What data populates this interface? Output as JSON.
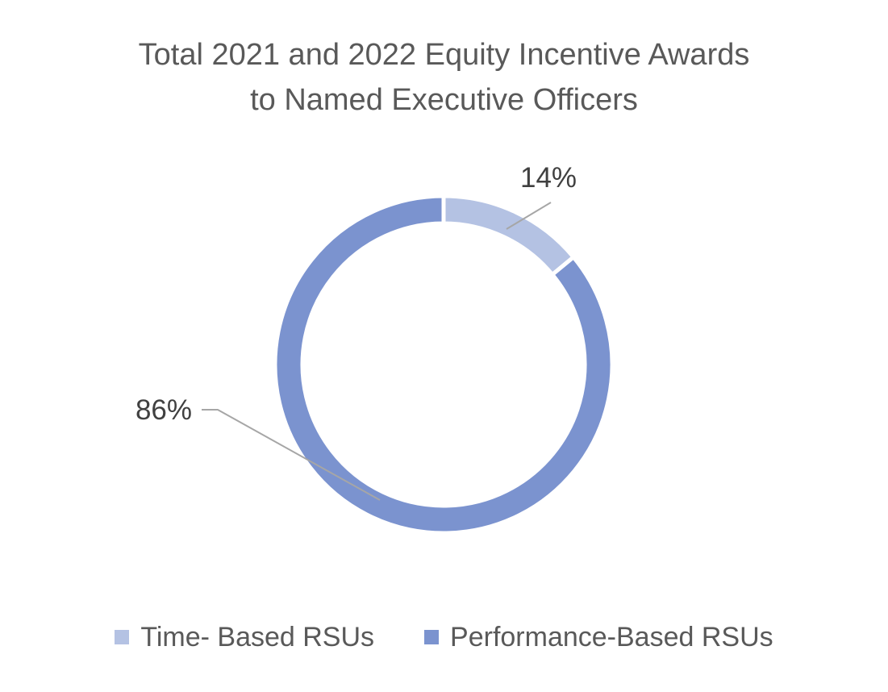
{
  "chart_data": {
    "type": "pie",
    "variant": "donut",
    "title": "Total 2021 and 2022 Equity Incentive Awards to Named Executive Officers",
    "title_lines": [
      "Total 2021 and 2022 Equity Incentive Awards",
      "to Named Executive Officers"
    ],
    "categories": [
      "Time- Based RSUs",
      "Performance-Based RSUs"
    ],
    "values": [
      14,
      86
    ],
    "data_labels": [
      "14%",
      "86%"
    ],
    "colors": [
      "#b4c2e3",
      "#7b93cf"
    ],
    "legend_position": "bottom"
  }
}
